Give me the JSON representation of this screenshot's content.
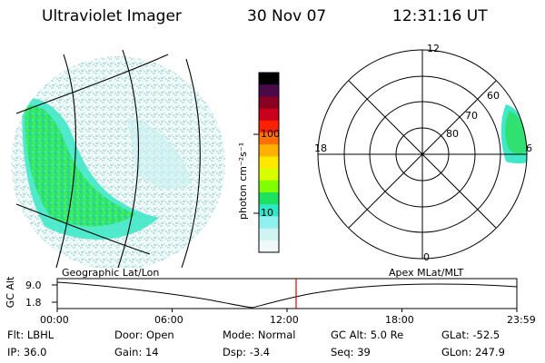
{
  "header": {
    "instrument": "Ultraviolet Imager",
    "date": "30 Nov 07",
    "time": "12:31:16 UT"
  },
  "colorbar": {
    "unit_label": "photon cm⁻²s⁻¹",
    "ticks": [
      "100",
      "10"
    ],
    "colors": [
      "#000000",
      "#4a0a4a",
      "#8a0020",
      "#c8001e",
      "#ff2000",
      "#ff7000",
      "#ffb000",
      "#ffe800",
      "#d8ff00",
      "#80ff00",
      "#20e060",
      "#30e8c8",
      "#90f0f0",
      "#d0f4f4",
      "#f0f8f8"
    ]
  },
  "polar": {
    "mlt_labels": [
      "12",
      "18",
      "6",
      "0"
    ],
    "lat_labels": [
      "60",
      "70",
      "80"
    ]
  },
  "timeline": {
    "left_label": "Geographic Lat/Lon",
    "right_label": "Apex MLat/MLT",
    "axis_label": "GC Alt",
    "ticks_y": [
      "9.0",
      "1.8"
    ],
    "ticks_x": [
      "00:00",
      "06:00",
      "12:00",
      "18:00",
      "23:59"
    ],
    "marker_color": "#e00000"
  },
  "info": {
    "row1": [
      {
        "label": "Flt:",
        "value": "LBHL"
      },
      {
        "label": "Door:",
        "value": "Open"
      },
      {
        "label": "Mode:",
        "value": "Normal"
      },
      {
        "label": "GC Alt:",
        "value": "5.0 Re"
      },
      {
        "label": "GLat:",
        "value": "-52.5"
      }
    ],
    "row2": [
      {
        "label": "IP:",
        "value": "36.0"
      },
      {
        "label": "Gain:",
        "value": "14"
      },
      {
        "label": "Dsp:",
        "value": "-3.4"
      },
      {
        "label": "Seq:",
        "value": "39"
      },
      {
        "label": "GLon:",
        "value": "247.9"
      }
    ]
  }
}
